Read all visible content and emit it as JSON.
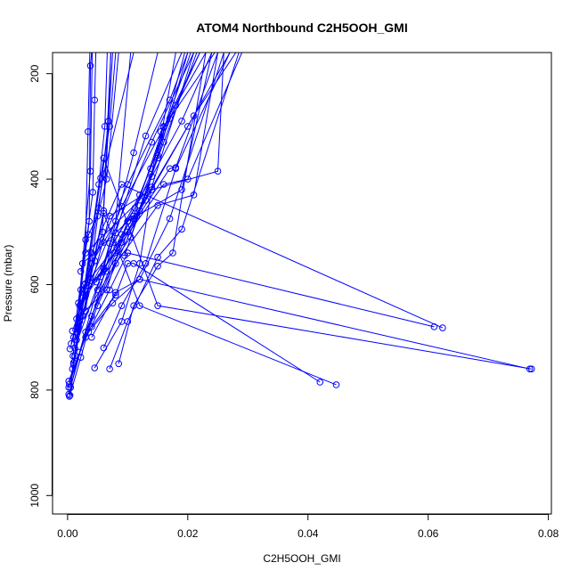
{
  "chart_data": {
    "type": "line",
    "title": "ATOM4 Northbound C2H5OOH_GMI",
    "xlabel": "C2H5OOH_GMI",
    "ylabel": "Pressure (mbar)",
    "xlim": [
      -0.0025,
      0.0805
    ],
    "ylim": [
      1035,
      160
    ],
    "y_reversed": true,
    "grid": false,
    "legend": "none",
    "x_ticks": [
      0.0,
      0.02,
      0.04,
      0.06,
      0.08
    ],
    "x_tick_labels": [
      "0.00",
      "0.02",
      "0.04",
      "0.06",
      "0.08"
    ],
    "y_ticks": [
      200,
      400,
      600,
      800,
      1000
    ],
    "y_tick_labels": [
      "200",
      "400",
      "600",
      "800",
      "1000"
    ],
    "series_color": "#0000ff",
    "marker": "open-circle",
    "series": [
      {
        "values": [
          [
            0.0003,
            812
          ],
          [
            0.001,
            752
          ],
          [
            0.003,
            598
          ],
          [
            0.006,
            390
          ],
          [
            0.011,
            160
          ]
        ]
      },
      {
        "values": [
          [
            0.0004,
            810
          ],
          [
            0.0022,
            738
          ],
          [
            0.008,
            502
          ],
          [
            0.013,
            318
          ],
          [
            0.019,
            160
          ]
        ]
      },
      {
        "values": [
          [
            0.0002,
            808
          ],
          [
            0.002,
            728
          ],
          [
            0.007,
            522
          ],
          [
            0.014,
            330
          ],
          [
            0.021,
            160
          ]
        ]
      },
      {
        "values": [
          [
            0.0005,
            795
          ],
          [
            0.003,
            690
          ],
          [
            0.01,
            480
          ],
          [
            0.019,
            290
          ],
          [
            0.024,
            160
          ]
        ]
      },
      {
        "values": [
          [
            0.0003,
            789
          ],
          [
            0.004,
            660
          ],
          [
            0.011,
            475
          ],
          [
            0.02,
            300
          ],
          [
            0.027,
            160
          ]
        ]
      },
      {
        "values": [
          [
            0.0002,
            783
          ],
          [
            0.005,
            640
          ],
          [
            0.012,
            460
          ],
          [
            0.021,
            280
          ],
          [
            0.028,
            160
          ]
        ]
      },
      {
        "values": [
          [
            0.0004,
            722
          ],
          [
            0.0035,
            602
          ],
          [
            0.009,
            452
          ],
          [
            0.016,
            302
          ],
          [
            0.022,
            160
          ]
        ]
      },
      {
        "values": [
          [
            0.0006,
            712
          ],
          [
            0.004,
            560
          ],
          [
            0.01,
            410
          ],
          [
            0.017,
            250
          ],
          [
            0.02,
            160
          ]
        ]
      },
      {
        "values": [
          [
            0.0008,
            688
          ],
          [
            0.003,
            620
          ],
          [
            0.012,
            430
          ],
          [
            0.018,
            260
          ],
          [
            0.023,
            160
          ]
        ]
      },
      {
        "values": [
          [
            0.0012,
            745
          ],
          [
            0.003,
            515
          ],
          [
            0.0034,
            310
          ],
          [
            0.0037,
            160
          ]
        ]
      },
      {
        "values": [
          [
            0.0009,
            735
          ],
          [
            0.0036,
            480
          ],
          [
            0.0038,
            185
          ],
          [
            0.004,
            160
          ]
        ]
      },
      {
        "values": [
          [
            0.001,
            700
          ],
          [
            0.0042,
            425
          ],
          [
            0.0045,
            250
          ],
          [
            0.0047,
            160
          ]
        ]
      },
      {
        "values": [
          [
            0.0015,
            690
          ],
          [
            0.0038,
            385
          ],
          [
            0.0041,
            160
          ]
        ]
      },
      {
        "values": [
          [
            0.002,
            670
          ],
          [
            0.0052,
            410
          ],
          [
            0.0062,
            300
          ],
          [
            0.0066,
            160
          ]
        ]
      },
      {
        "values": [
          [
            0.0025,
            660
          ],
          [
            0.006,
            460
          ],
          [
            0.0075,
            160
          ]
        ]
      },
      {
        "values": [
          [
            0.003,
            650
          ],
          [
            0.0052,
            455
          ],
          [
            0.0068,
            290
          ],
          [
            0.0072,
            160
          ]
        ]
      },
      {
        "values": [
          [
            0.0008,
            760
          ],
          [
            0.0055,
            398
          ],
          [
            0.007,
            300
          ],
          [
            0.008,
            160
          ]
        ]
      },
      {
        "values": [
          [
            0.0012,
            720
          ],
          [
            0.006,
            570
          ],
          [
            0.011,
            350
          ],
          [
            0.015,
            160
          ]
        ]
      },
      {
        "values": [
          [
            0.0015,
            705
          ],
          [
            0.007,
            470
          ],
          [
            0.014,
            420
          ],
          [
            0.025,
            385
          ],
          [
            0.026,
            160
          ]
        ]
      },
      {
        "values": [
          [
            0.0018,
            680
          ],
          [
            0.008,
            560
          ],
          [
            0.015,
            450
          ],
          [
            0.021,
            430
          ],
          [
            0.025,
            160
          ]
        ]
      },
      {
        "values": [
          [
            0.002,
            640
          ],
          [
            0.009,
            520
          ],
          [
            0.016,
            410
          ],
          [
            0.02,
            400
          ],
          [
            0.029,
            160
          ]
        ]
      },
      {
        "values": [
          [
            0.0022,
            610
          ],
          [
            0.01,
            500
          ],
          [
            0.017,
            380
          ],
          [
            0.018,
            378
          ],
          [
            0.025,
            160
          ]
        ]
      },
      {
        "values": [
          [
            0.0025,
            560
          ],
          [
            0.011,
            470
          ],
          [
            0.016,
            300
          ],
          [
            0.017,
            285
          ],
          [
            0.022,
            160
          ]
        ]
      },
      {
        "values": [
          [
            0.003,
            540
          ],
          [
            0.012,
            440
          ],
          [
            0.015,
            360
          ],
          [
            0.02,
            160
          ]
        ]
      },
      {
        "values": [
          [
            0.004,
            700
          ],
          [
            0.008,
            615
          ],
          [
            0.012,
            590
          ],
          [
            0.017,
            475
          ],
          [
            0.026,
            160
          ]
        ]
      },
      {
        "values": [
          [
            0.006,
            720
          ],
          [
            0.009,
            640
          ],
          [
            0.013,
            560
          ],
          [
            0.018,
            380
          ],
          [
            0.027,
            160
          ]
        ]
      },
      {
        "values": [
          [
            0.007,
            760
          ],
          [
            0.01,
            670
          ],
          [
            0.015,
            548
          ],
          [
            0.019,
            495
          ],
          [
            0.0285,
            160
          ]
        ]
      },
      {
        "values": [
          [
            0.0085,
            750
          ],
          [
            0.011,
            640
          ],
          [
            0.015,
            565
          ],
          [
            0.0175,
            540
          ],
          [
            0.023,
            160
          ]
        ]
      },
      {
        "values": [
          [
            0.0045,
            758
          ],
          [
            0.009,
            670
          ],
          [
            0.012,
            560
          ],
          [
            0.014,
            415
          ],
          [
            0.021,
            160
          ]
        ]
      },
      {
        "values": [
          [
            0.0002,
            795
          ],
          [
            0.006,
            465
          ],
          [
            0.012,
            640
          ],
          [
            0.0447,
            790
          ]
        ]
      },
      {
        "values": [
          [
            0.001,
            748
          ],
          [
            0.006,
            360
          ],
          [
            0.015,
            640
          ],
          [
            0.0772,
            760
          ]
        ]
      },
      {
        "values": [
          [
            0.0012,
            735
          ],
          [
            0.004,
            540
          ],
          [
            0.009,
            410
          ],
          [
            0.0624,
            682
          ]
        ]
      },
      {
        "values": [
          [
            0.003,
            700
          ],
          [
            0.007,
            610
          ],
          [
            0.01,
            540
          ],
          [
            0.061,
            680
          ]
        ]
      },
      {
        "values": [
          [
            0.0035,
            690
          ],
          [
            0.0075,
            635
          ],
          [
            0.012,
            590
          ],
          [
            0.0769,
            760
          ]
        ]
      },
      {
        "values": [
          [
            0.004,
            680
          ],
          [
            0.008,
            620
          ],
          [
            0.01,
            560
          ],
          [
            0.011,
            560
          ],
          [
            0.042,
            785
          ]
        ]
      },
      {
        "values": [
          [
            0.002,
            660
          ],
          [
            0.0065,
            610
          ],
          [
            0.01,
            480
          ],
          [
            0.019,
            420
          ],
          [
            0.024,
            160
          ]
        ]
      },
      {
        "values": [
          [
            0.0025,
            625
          ],
          [
            0.0078,
            540
          ],
          [
            0.0095,
            545
          ],
          [
            0.014,
            395
          ],
          [
            0.0195,
            160
          ]
        ]
      },
      {
        "values": [
          [
            0.0028,
            600
          ],
          [
            0.0065,
            575
          ],
          [
            0.0105,
            510
          ],
          [
            0.015,
            355
          ],
          [
            0.018,
            160
          ]
        ]
      },
      {
        "values": [
          [
            0.005,
            610
          ],
          [
            0.0082,
            530
          ],
          [
            0.0115,
            470
          ],
          [
            0.016,
            330
          ],
          [
            0.0215,
            160
          ]
        ]
      },
      {
        "values": [
          [
            0.0055,
            585
          ],
          [
            0.009,
            505
          ],
          [
            0.013,
            440
          ],
          [
            0.0155,
            310
          ],
          [
            0.0245,
            160
          ]
        ]
      },
      {
        "values": [
          [
            0.0048,
            595
          ],
          [
            0.0076,
            520
          ],
          [
            0.0112,
            455
          ],
          [
            0.0138,
            380
          ],
          [
            0.0205,
            160
          ]
        ]
      },
      {
        "values": [
          [
            0.0018,
            635
          ],
          [
            0.004,
            560
          ],
          [
            0.006,
            520
          ],
          [
            0.008,
            480
          ],
          [
            0.0105,
            160
          ]
        ]
      },
      {
        "values": [
          [
            0.0022,
            575
          ],
          [
            0.0035,
            505
          ],
          [
            0.005,
            470
          ],
          [
            0.0065,
            400
          ],
          [
            0.0085,
            160
          ]
        ]
      },
      {
        "values": [
          [
            0.0015,
            665
          ],
          [
            0.0028,
            610
          ],
          [
            0.0045,
            555
          ],
          [
            0.0058,
            500
          ],
          [
            0.0072,
            160
          ]
        ]
      }
    ]
  }
}
